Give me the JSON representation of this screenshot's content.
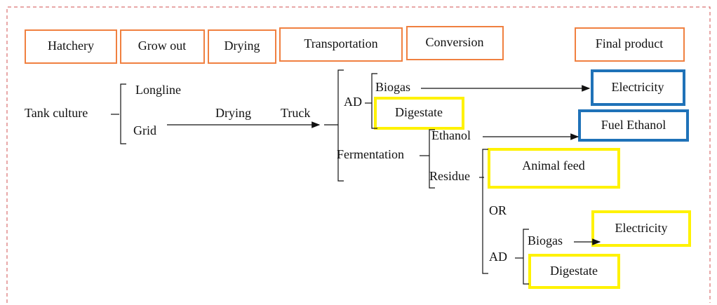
{
  "stages": [
    "Hatchery",
    "Grow out",
    "Drying",
    "Transportation",
    "Conversion",
    "Final product"
  ],
  "nodes": {
    "source": "Tank culture",
    "longline": "Longline",
    "grid": "Grid",
    "drying": "Drying",
    "truck": "Truck",
    "ad": "AD",
    "biogas": "Biogas",
    "digestate": "Digestate",
    "electricity": "Electricity",
    "fermentation": "Fermentation",
    "ethanol": "Ethanol",
    "fuel_ethanol": "Fuel Ethanol",
    "residue": "Residue",
    "animal_feed": "Animal feed",
    "or": "OR",
    "ad_2": "AD",
    "biogas_2": "Biogas",
    "electricity_2": "Electricity",
    "digestate_2": "Digestate"
  }
}
